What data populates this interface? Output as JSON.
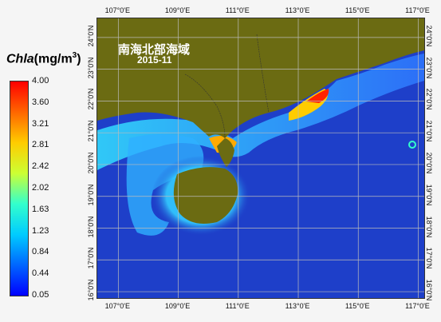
{
  "map": {
    "title": "南海北部海域",
    "date": "2015-11",
    "lon_labels": [
      "107°0'E",
      "109°0'E",
      "111°0'E",
      "113°0'E",
      "115°0'E",
      "117°0'E"
    ],
    "lat_labels": [
      "24°0'N",
      "23°0'N",
      "22°0'N",
      "21°0'N",
      "20°0'N",
      "19°0'N",
      "18°0'N",
      "17°0'N",
      "16°0'N"
    ],
    "extent": {
      "lon": [
        106.3,
        117.2
      ],
      "lat": [
        15.8,
        24.6
      ]
    },
    "land_color": "#6b6b12",
    "sea_color": "#1e3fc9"
  },
  "colorbar": {
    "title_var": "Chla",
    "title_units": "(mg/m",
    "title_sup": "3",
    "title_close": ")",
    "labels": [
      "4.00",
      "3.60",
      "3.21",
      "2.81",
      "2.42",
      "2.02",
      "1.63",
      "1.23",
      "0.84",
      "0.44",
      "0.05"
    ],
    "colors": [
      "#ff0000",
      "#ff6600",
      "#ffcc00",
      "#ccff33",
      "#33ffcc",
      "#00ccff",
      "#0066ff",
      "#0000ff"
    ]
  }
}
